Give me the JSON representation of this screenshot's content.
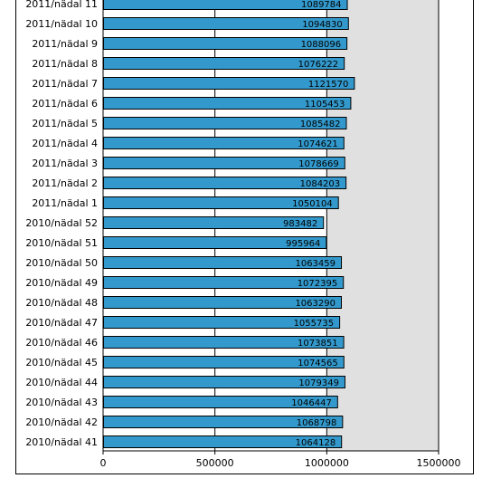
{
  "chart_data": {
    "type": "bar",
    "orientation": "horizontal",
    "categories": [
      "2011/nädal 11",
      "2011/nädal 10",
      "2011/nädal 9",
      "2011/nädal 8",
      "2011/nädal 7",
      "2011/nädal 6",
      "2011/nädal 5",
      "2011/nädal 4",
      "2011/nädal 3",
      "2011/nädal 2",
      "2011/nädal 1",
      "2010/nädal 52",
      "2010/nädal 51",
      "2010/nädal 50",
      "2010/nädal 49",
      "2010/nädal 48",
      "2010/nädal 47",
      "2010/nädal 46",
      "2010/nädal 45",
      "2010/nädal 44",
      "2010/nädal 43",
      "2010/nädal 42",
      "2010/nädal 41"
    ],
    "values": [
      1089784,
      1094830,
      1088096,
      1076222,
      1121570,
      1105453,
      1085482,
      1074621,
      1078669,
      1084203,
      1050104,
      983482,
      995964,
      1063459,
      1072395,
      1063290,
      1055735,
      1073851,
      1074565,
      1079349,
      1046447,
      1068798,
      1064128
    ],
    "value_labels": [
      "1089784",
      "1094830",
      "1088096",
      "1076222",
      "1121570",
      "1105453",
      "1085482",
      "1074621",
      "1078669",
      "1084203",
      "1050104",
      "983482",
      "995964",
      "1063459",
      "1072395",
      "1063290",
      "1055735",
      "1073851",
      "1074565",
      "1079349",
      "1046447",
      "1068798",
      "1064128"
    ],
    "xlim": [
      0,
      1500000
    ],
    "x_ticks": [
      "0",
      "500000",
      "1000000",
      "1500000"
    ],
    "grid": true,
    "colors": {
      "bar": "#3399cc",
      "bar_border": "#000000",
      "plot_background_shaded": "#e0e0e0"
    }
  }
}
